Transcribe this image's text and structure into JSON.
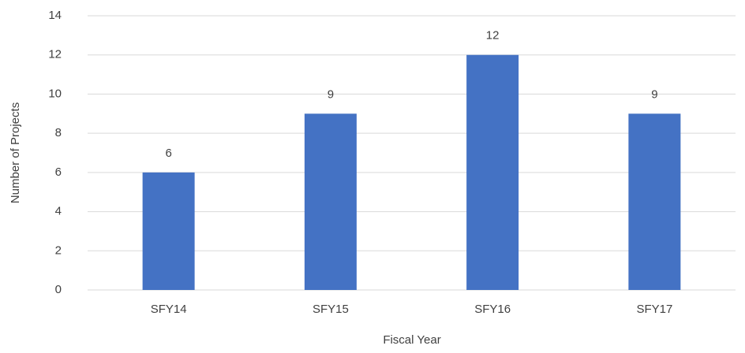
{
  "chart_data": {
    "type": "bar",
    "categories": [
      "SFY14",
      "SFY15",
      "SFY16",
      "SFY17"
    ],
    "values": [
      6,
      9,
      12,
      9
    ],
    "color": "#4472c4",
    "ylim": [
      0,
      14
    ],
    "yticks": [
      0,
      2,
      4,
      6,
      8,
      10,
      12,
      14
    ],
    "grid": true,
    "x_label": "Fiscal Year",
    "y_label": "Number of Projects",
    "data_labels": true
  }
}
